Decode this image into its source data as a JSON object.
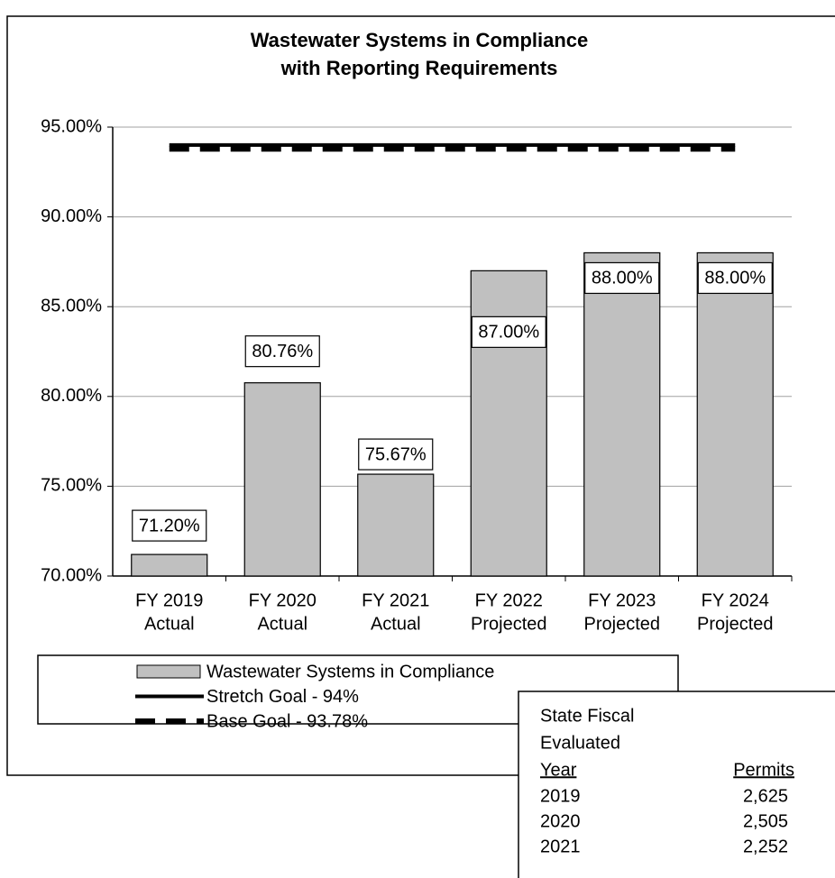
{
  "chart_data": {
    "type": "bar",
    "title": [
      "Wastewater Systems in Compliance",
      "with Reporting Requirements"
    ],
    "categories": [
      [
        "FY 2019",
        "Actual"
      ],
      [
        "FY 2020",
        "Actual"
      ],
      [
        "FY 2021",
        "Actual"
      ],
      [
        "FY 2022",
        "Projected"
      ],
      [
        "FY 2023",
        "Projected"
      ],
      [
        "FY 2024",
        "Projected"
      ]
    ],
    "series": [
      {
        "name": "Wastewater Systems in Compliance",
        "type": "bar",
        "color": "#c0c0c0",
        "values": [
          71.2,
          80.76,
          75.67,
          87,
          88,
          88
        ],
        "value_labels": [
          "71.20%",
          "80.76%",
          "75.67%",
          "87.00%",
          "88.00%",
          "88.00%"
        ]
      },
      {
        "name": "Stretch Goal - 94%",
        "type": "line",
        "color": "#000000",
        "dash": false,
        "values": [
          94,
          94,
          94,
          94,
          94,
          94
        ]
      },
      {
        "name": "Base Goal - 93.78%",
        "type": "line",
        "color": "#000000",
        "dash": true,
        "values": [
          93.78,
          93.78,
          93.78,
          93.78,
          93.78,
          93.78
        ]
      }
    ],
    "ylim": [
      70,
      95
    ],
    "yticks": [
      {
        "value": 70,
        "label": "70.00%"
      },
      {
        "value": 75,
        "label": "75.00%"
      },
      {
        "value": 80,
        "label": "80.00%"
      },
      {
        "value": 85,
        "label": "85.00%"
      },
      {
        "value": 90,
        "label": "90.00%"
      },
      {
        "value": 95,
        "label": "95.00%"
      }
    ],
    "grid": true
  },
  "table": {
    "header": [
      "State Fiscal",
      "Evaluated"
    ],
    "columns": [
      "Year",
      "Permits"
    ],
    "rows": [
      [
        "2019",
        "2,625"
      ],
      [
        "2020",
        "2,505"
      ],
      [
        "2021",
        "2,252"
      ]
    ]
  }
}
